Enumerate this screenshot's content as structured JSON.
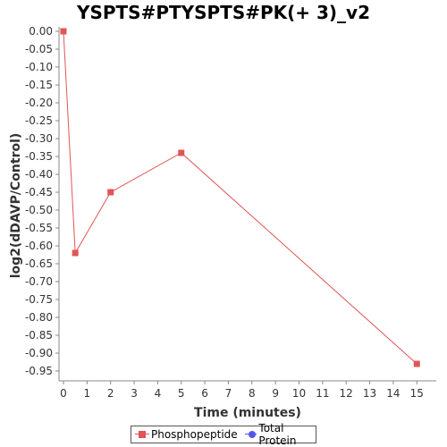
{
  "chart_data": {
    "type": "line",
    "title": "YSPTS#PTYSPTS#PK(+ 3)_v2",
    "xlabel": "Time (minutes)",
    "ylabel": "log2(dDAVP/Control)",
    "xlim": [
      0,
      16
    ],
    "ylim": [
      -0.98,
      0.0
    ],
    "x_ticks": [
      0,
      1,
      2,
      3,
      4,
      5,
      6,
      7,
      8,
      9,
      10,
      11,
      12,
      13,
      14,
      15
    ],
    "y_ticks": [
      "0.00",
      "-0.05",
      "-0.10",
      "-0.15",
      "-0.20",
      "-0.25",
      "-0.30",
      "-0.35",
      "-0.40",
      "-0.45",
      "-0.50",
      "-0.55",
      "-0.60",
      "-0.65",
      "-0.70",
      "-0.75",
      "-0.80",
      "-0.85",
      "-0.90",
      "-0.95"
    ],
    "series": [
      {
        "name": "Phosphopeptide",
        "color": "#e05555",
        "marker": "square",
        "points": [
          {
            "x": 0,
            "y": 0.0
          },
          {
            "x": 0.5,
            "y": -0.62
          },
          {
            "x": 2,
            "y": -0.45
          },
          {
            "x": 5,
            "y": -0.34
          },
          {
            "x": 15,
            "y": -0.93
          }
        ]
      },
      {
        "name": "Total Protein",
        "color": "#5555ee",
        "marker": "circle",
        "points": []
      }
    ],
    "grid": false,
    "legend_position": "bottom-center"
  }
}
